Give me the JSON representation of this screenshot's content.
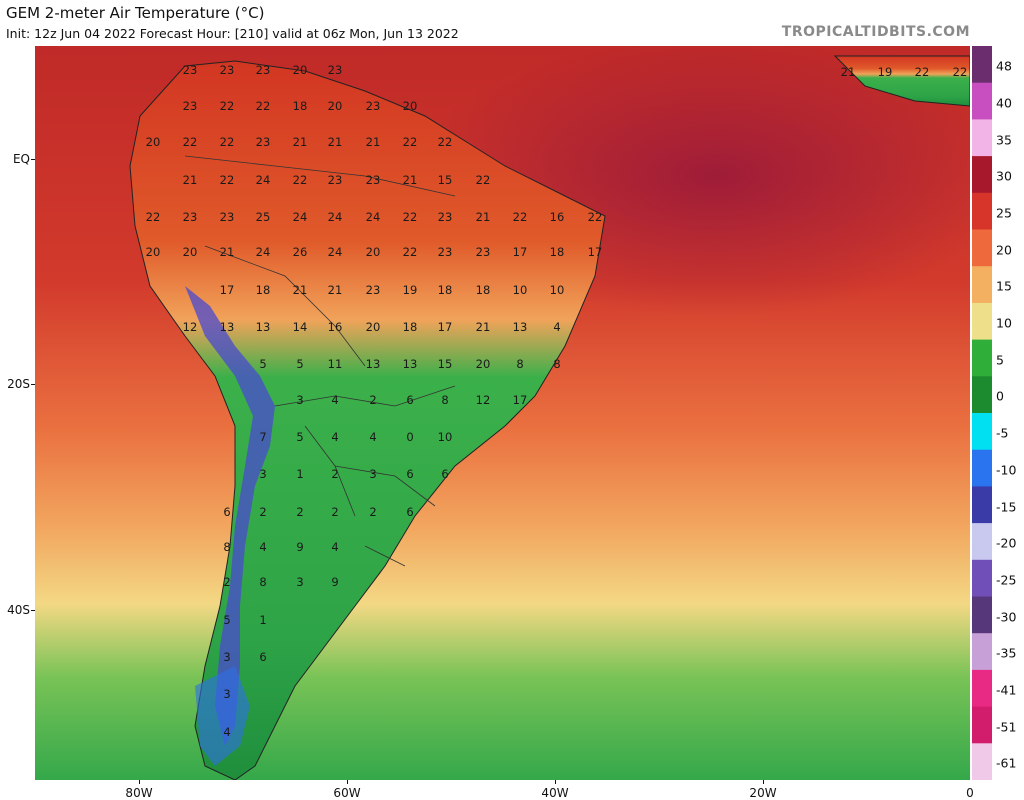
{
  "header": {
    "title": "GEM 2-meter Air Temperature (°C)",
    "subtitle": "Init: 12z Jun 04 2022   Forecast Hour: [210]   valid at 06z Mon, Jun 13 2022",
    "brand": "TROPICALTIDBITS.COM"
  },
  "axes": {
    "lat_labels": [
      "EQ",
      "20S",
      "40S"
    ],
    "lon_labels": [
      "80W",
      "60W",
      "40W",
      "20W",
      "0"
    ]
  },
  "colorbar": {
    "labels": [
      "48",
      "40",
      "35",
      "30",
      "25",
      "20",
      "15",
      "10",
      "5",
      "0",
      "-5",
      "-10",
      "-15",
      "-20",
      "-25",
      "-30",
      "-35",
      "-41",
      "-51",
      "-61"
    ],
    "colors": [
      "#6b2d6e",
      "#c74fc0",
      "#f2b3e6",
      "#a8182c",
      "#d8352a",
      "#ee6a3c",
      "#f3b060",
      "#eee08a",
      "#2fae3a",
      "#1c8a2f",
      "#00e0f0",
      "#2a74f0",
      "#3b3ba8",
      "#c9c9f0",
      "#7050b8",
      "#56387a",
      "#c8a0d8",
      "#e82a84",
      "#d21c6c",
      "#f0c8e8"
    ]
  },
  "map": {
    "land_outline": "South America",
    "temperature_labels": [
      "23",
      "23",
      "23",
      "20",
      "23",
      "23",
      "22",
      "22",
      "18",
      "20",
      "23",
      "20",
      "20",
      "22",
      "22",
      "23",
      "21",
      "21",
      "21",
      "22",
      "22",
      "21",
      "22",
      "24",
      "22",
      "23",
      "23",
      "21",
      "15",
      "22",
      "22",
      "23",
      "23",
      "25",
      "24",
      "24",
      "24",
      "22",
      "23",
      "21",
      "22",
      "16",
      "22",
      "20",
      "20",
      "21",
      "24",
      "26",
      "24",
      "20",
      "22",
      "23",
      "23",
      "17",
      "18",
      "17",
      "17",
      "18",
      "21",
      "21",
      "23",
      "19",
      "18",
      "18",
      "10",
      "10",
      "12",
      "13",
      "13",
      "14",
      "16",
      "20",
      "18",
      "17",
      "21",
      "13",
      "4",
      "5",
      "5",
      "11",
      "13",
      "13",
      "15",
      "20",
      "8",
      "8",
      "3",
      "4",
      "2",
      "6",
      "8",
      "12",
      "17",
      "7",
      "5",
      "4",
      "4",
      "0",
      "10",
      "3",
      "1",
      "2",
      "3",
      "6",
      "6",
      "6",
      "2",
      "2",
      "2",
      "2",
      "6",
      "8",
      "4",
      "9",
      "4",
      "2",
      "8",
      "3",
      "9",
      "5",
      "1",
      "3",
      "6",
      "3",
      "4"
    ],
    "right_corner_labels": [
      "21",
      "19",
      "22",
      "22"
    ]
  }
}
